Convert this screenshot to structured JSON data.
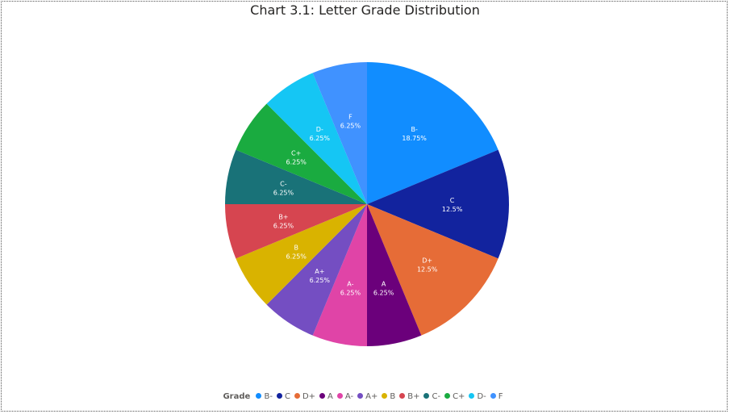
{
  "chart_data": {
    "type": "pie",
    "title": "Chart 3.1: Letter Grade Distribution",
    "legend_title": "Grade",
    "legend_position": "bottom",
    "categories": [
      "B-",
      "C",
      "D+",
      "A",
      "A-",
      "A+",
      "B",
      "B+",
      "C-",
      "C+",
      "D-",
      "F"
    ],
    "values": [
      18.75,
      12.5,
      12.5,
      6.25,
      6.25,
      6.25,
      6.25,
      6.25,
      6.25,
      6.25,
      6.25,
      6.25
    ],
    "value_labels": [
      "18.75%",
      "12.5%",
      "12.5%",
      "6.25%",
      "6.25%",
      "6.25%",
      "6.25%",
      "6.25%",
      "6.25%",
      "6.25%",
      "6.25%",
      "6.25%"
    ],
    "colors": [
      "#118DFF",
      "#12239E",
      "#E66C37",
      "#6B007B",
      "#E044A7",
      "#744EC2",
      "#D9B300",
      "#D64550",
      "#197278",
      "#1AAB40",
      "#15C6F4",
      "#4092FF"
    ]
  }
}
